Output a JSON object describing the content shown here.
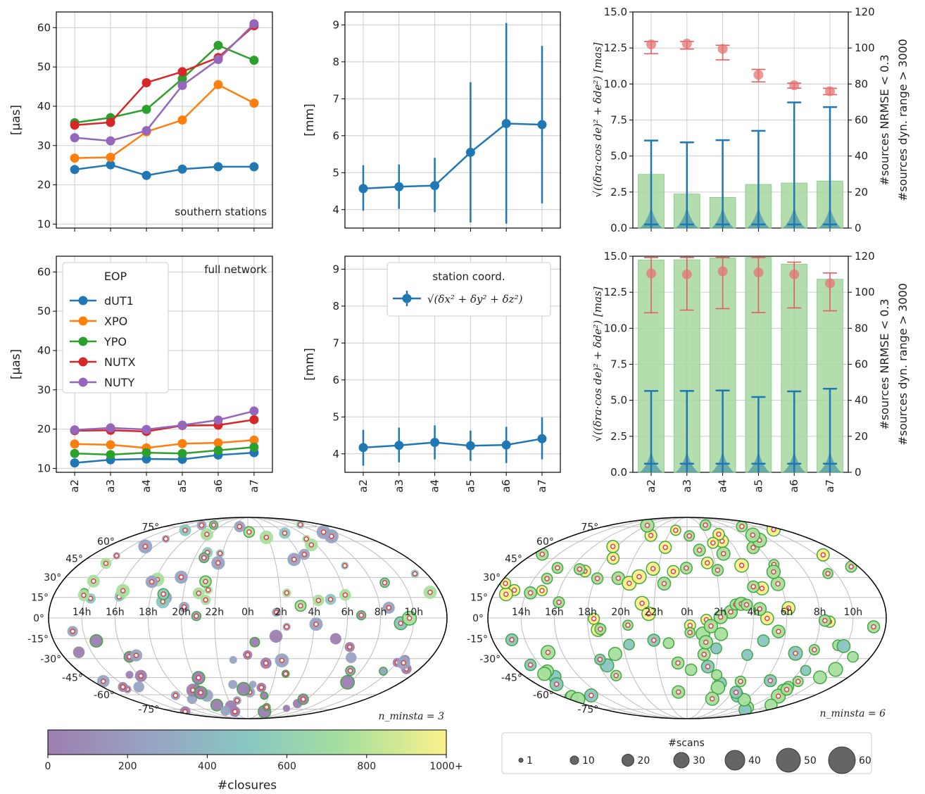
{
  "colors": {
    "dUT1": "#1f77b4",
    "XPO": "#ff7f0e",
    "YPO": "#2ca02c",
    "NUTX": "#d62728",
    "NUTY": "#9467bd",
    "blue": "#1f77b4",
    "green": "#2ca02c",
    "red": "#d62728",
    "bar_fill": "#a8d8a0",
    "grid": "#cccccc"
  },
  "chart_data": [
    {
      "id": "eop_southern",
      "type": "line",
      "categories": [
        "a2",
        "a3",
        "a4",
        "a5",
        "a6",
        "a7"
      ],
      "ylabel": "[µas]",
      "ylim": [
        9,
        64
      ],
      "yticks": [
        10,
        20,
        30,
        40,
        50,
        60
      ],
      "annotation": "southern stations",
      "series": [
        {
          "name": "dUT1",
          "values": [
            23.9,
            25.1,
            22.4,
            24.0,
            24.6,
            24.6
          ]
        },
        {
          "name": "XPO",
          "values": [
            26.8,
            27.0,
            33.5,
            36.5,
            45.5,
            40.8
          ]
        },
        {
          "name": "YPO",
          "values": [
            35.8,
            37.1,
            39.2,
            47.0,
            55.5,
            51.7
          ]
        },
        {
          "name": "NUTX",
          "values": [
            35.2,
            35.9,
            46.0,
            48.8,
            52.4,
            60.5
          ]
        },
        {
          "name": "NUTY",
          "values": [
            32.0,
            31.2,
            33.8,
            45.3,
            51.9,
            61.0
          ]
        }
      ]
    },
    {
      "id": "eop_full",
      "type": "line",
      "categories": [
        "a2",
        "a3",
        "a4",
        "a5",
        "a6",
        "a7"
      ],
      "ylabel": "[µas]",
      "ylim": [
        9,
        64
      ],
      "yticks": [
        10,
        20,
        30,
        40,
        50,
        60
      ],
      "annotation": "full network",
      "legend_title": "EOP",
      "series": [
        {
          "name": "dUT1",
          "values": [
            11.4,
            12.2,
            12.4,
            12.3,
            13.4,
            14.0
          ]
        },
        {
          "name": "XPO",
          "values": [
            16.2,
            16.0,
            15.2,
            16.3,
            16.5,
            17.2
          ]
        },
        {
          "name": "YPO",
          "values": [
            13.8,
            13.5,
            14.0,
            13.8,
            14.6,
            15.4
          ]
        },
        {
          "name": "NUTX",
          "values": [
            19.6,
            19.7,
            19.4,
            20.9,
            21.0,
            22.4
          ]
        },
        {
          "name": "NUTY",
          "values": [
            19.8,
            20.3,
            19.9,
            21.0,
            22.3,
            24.6
          ]
        }
      ]
    },
    {
      "id": "station_southern",
      "type": "line",
      "categories": [
        "a2",
        "a3",
        "a4",
        "a5",
        "a6",
        "a7"
      ],
      "ylabel": "[mm]",
      "ylim": [
        3.5,
        9.35
      ],
      "yticks": [
        4,
        5,
        6,
        7,
        8,
        9
      ],
      "series": [
        {
          "values": [
            4.57,
            4.62,
            4.65,
            5.55,
            6.33,
            6.3
          ],
          "err_low": [
            3.97,
            4.02,
            3.93,
            3.65,
            3.62,
            4.17
          ],
          "err_high": [
            5.2,
            5.22,
            5.4,
            7.45,
            9.05,
            8.43
          ]
        }
      ]
    },
    {
      "id": "station_full",
      "type": "line",
      "categories": [
        "a2",
        "a3",
        "a4",
        "a5",
        "a6",
        "a7"
      ],
      "ylabel": "[mm]",
      "ylim": [
        3.5,
        9.35
      ],
      "yticks": [
        4,
        5,
        6,
        7,
        8,
        9
      ],
      "legend_title": "station coord.",
      "series": [
        {
          "name": "√(δx² + δy² + δz²)",
          "values": [
            4.17,
            4.23,
            4.31,
            4.22,
            4.24,
            4.41
          ],
          "err_low": [
            3.68,
            3.77,
            3.85,
            3.81,
            3.75,
            3.85
          ],
          "err_high": [
            4.65,
            4.71,
            4.77,
            4.63,
            4.73,
            4.99
          ]
        }
      ]
    },
    {
      "id": "sources_southern",
      "type": "bar",
      "categories": [
        "a2",
        "a3",
        "a4",
        "a5",
        "a6",
        "a7"
      ],
      "ylabel_left": "√((δra·cos de)² + δde²) [mas]",
      "ylabel_right_green": "#sources NRMSE < 0.3",
      "ylabel_right_red": "#sources dyn. range > 3000",
      "ylim_left": [
        0,
        15
      ],
      "yticks_left": [
        0.0,
        2.5,
        5.0,
        7.5,
        10.0,
        12.5,
        15.0
      ],
      "ylim_right": [
        0,
        120
      ],
      "yticks_right": [
        0,
        20,
        40,
        60,
        80,
        100,
        120
      ],
      "bars_right": [
        29.8,
        18.9,
        17.0,
        24.2,
        25.0,
        26.1
      ],
      "red_markers_right": [
        102.0,
        102.4,
        99.5,
        85.1,
        79.3,
        76.0
      ],
      "red_err_low": [
        96.8,
        99.4,
        93.4,
        81.2,
        77.7,
        74.1
      ],
      "red_err_high": [
        103.6,
        103.6,
        101.5,
        88.1,
        80.5,
        77.6
      ],
      "blue_median_left": [
        0.25,
        0.25,
        0.25,
        0.25,
        0.25,
        0.25
      ],
      "blue_max_left": [
        6.08,
        5.95,
        6.1,
        6.75,
        8.72,
        8.4
      ]
    },
    {
      "id": "sources_full",
      "type": "bar",
      "categories": [
        "a2",
        "a3",
        "a4",
        "a5",
        "a6",
        "a7"
      ],
      "ylabel_left": "√((δra·cos de)² + δde²) [mas]",
      "ylabel_right_green": "#sources NRMSE < 0.3",
      "ylabel_right_red": "#sources dyn. range > 3000",
      "ylim_left": [
        0,
        15
      ],
      "yticks_left": [
        0.0,
        2.5,
        5.0,
        7.5,
        10.0,
        12.5,
        15.0
      ],
      "ylim_right": [
        0,
        120
      ],
      "yticks_right": [
        0,
        20,
        40,
        60,
        80,
        100,
        120
      ],
      "bars_right": [
        117.9,
        118.0,
        119.0,
        119.3,
        115.6,
        107.2
      ],
      "red_markers_right": [
        110.4,
        109.9,
        111.6,
        111.0,
        109.9,
        105.0
      ],
      "red_err_low": [
        88.6,
        90.1,
        90.9,
        88.7,
        91.3,
        89.7
      ],
      "red_err_high": [
        119.3,
        119.3,
        119.3,
        119.3,
        116.7,
        110.7
      ],
      "blue_median_left": [
        0.6,
        0.6,
        0.6,
        0.6,
        0.6,
        0.6
      ],
      "blue_max_left": [
        5.65,
        5.65,
        5.68,
        5.23,
        5.62,
        5.8
      ]
    },
    {
      "id": "sky_map_left",
      "type": "scatter",
      "projection": "mollweide",
      "annotation": "n_minsta = 3",
      "lat_labels": [
        "75°",
        "60°",
        "45°",
        "30°",
        "15°",
        "0°",
        "-15°",
        "-30°",
        "-45°",
        "-60°",
        "-75°"
      ],
      "ra_labels": [
        "14h",
        "16h",
        "18h",
        "20h",
        "22h",
        "0h",
        "2h",
        "4h",
        "6h",
        "8h",
        "10h"
      ]
    },
    {
      "id": "sky_map_right",
      "type": "scatter",
      "projection": "mollweide",
      "annotation": "n_minsta = 6",
      "lat_labels": [
        "75°",
        "60°",
        "45°",
        "30°",
        "15°",
        "0°",
        "-15°",
        "-30°",
        "-45°",
        "-60°",
        "-75°"
      ],
      "ra_labels": [
        "14h",
        "16h",
        "18h",
        "20h",
        "22h",
        "0h",
        "2h",
        "4h",
        "6h",
        "8h",
        "10h"
      ]
    }
  ],
  "colorbar": {
    "label": "#closures",
    "ticks": [
      "0",
      "200",
      "400",
      "600",
      "800",
      "1000+"
    ],
    "range": [
      0,
      1000
    ]
  },
  "size_legend": {
    "title": "#scans",
    "values": [
      "1",
      "10",
      "20",
      "30",
      "40",
      "50",
      "60"
    ]
  }
}
